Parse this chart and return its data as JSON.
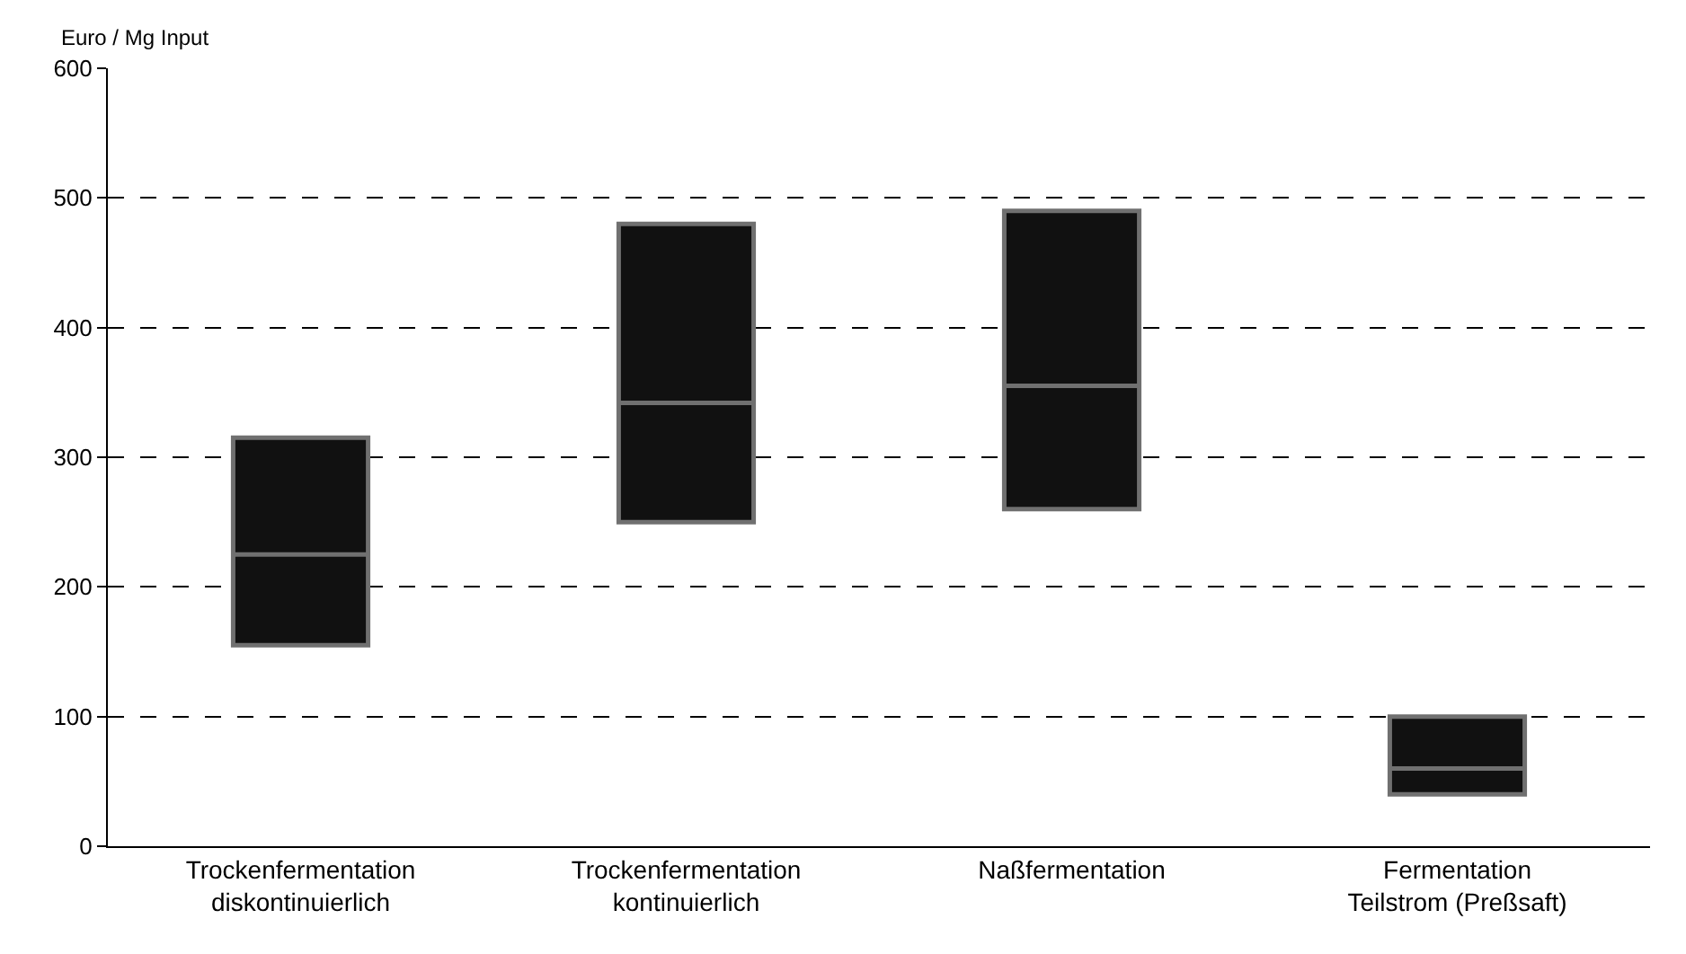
{
  "chart_data": {
    "type": "box",
    "ylabel": "Euro / Mg Input",
    "categories": [
      "Trockenfermentation\ndiskontinuierlich",
      "Trockenfermentation\nkontinuierlich",
      "Naßfermentation",
      "Fermentation\nTeilstrom (Preßsaft)"
    ],
    "series": [
      {
        "color": "#111111",
        "boxes": [
          {
            "q1": 155,
            "median": 225,
            "q3": 315
          },
          {
            "q1": 250,
            "median": 342,
            "q3": 480
          },
          {
            "q1": 260,
            "median": 355,
            "q3": 490
          },
          {
            "q1": 40,
            "median": 60,
            "q3": 100
          }
        ]
      }
    ],
    "ylim": [
      0,
      600
    ],
    "yticks": [
      0,
      100,
      200,
      300,
      400,
      500,
      600
    ],
    "grid": "y",
    "legend": false
  }
}
